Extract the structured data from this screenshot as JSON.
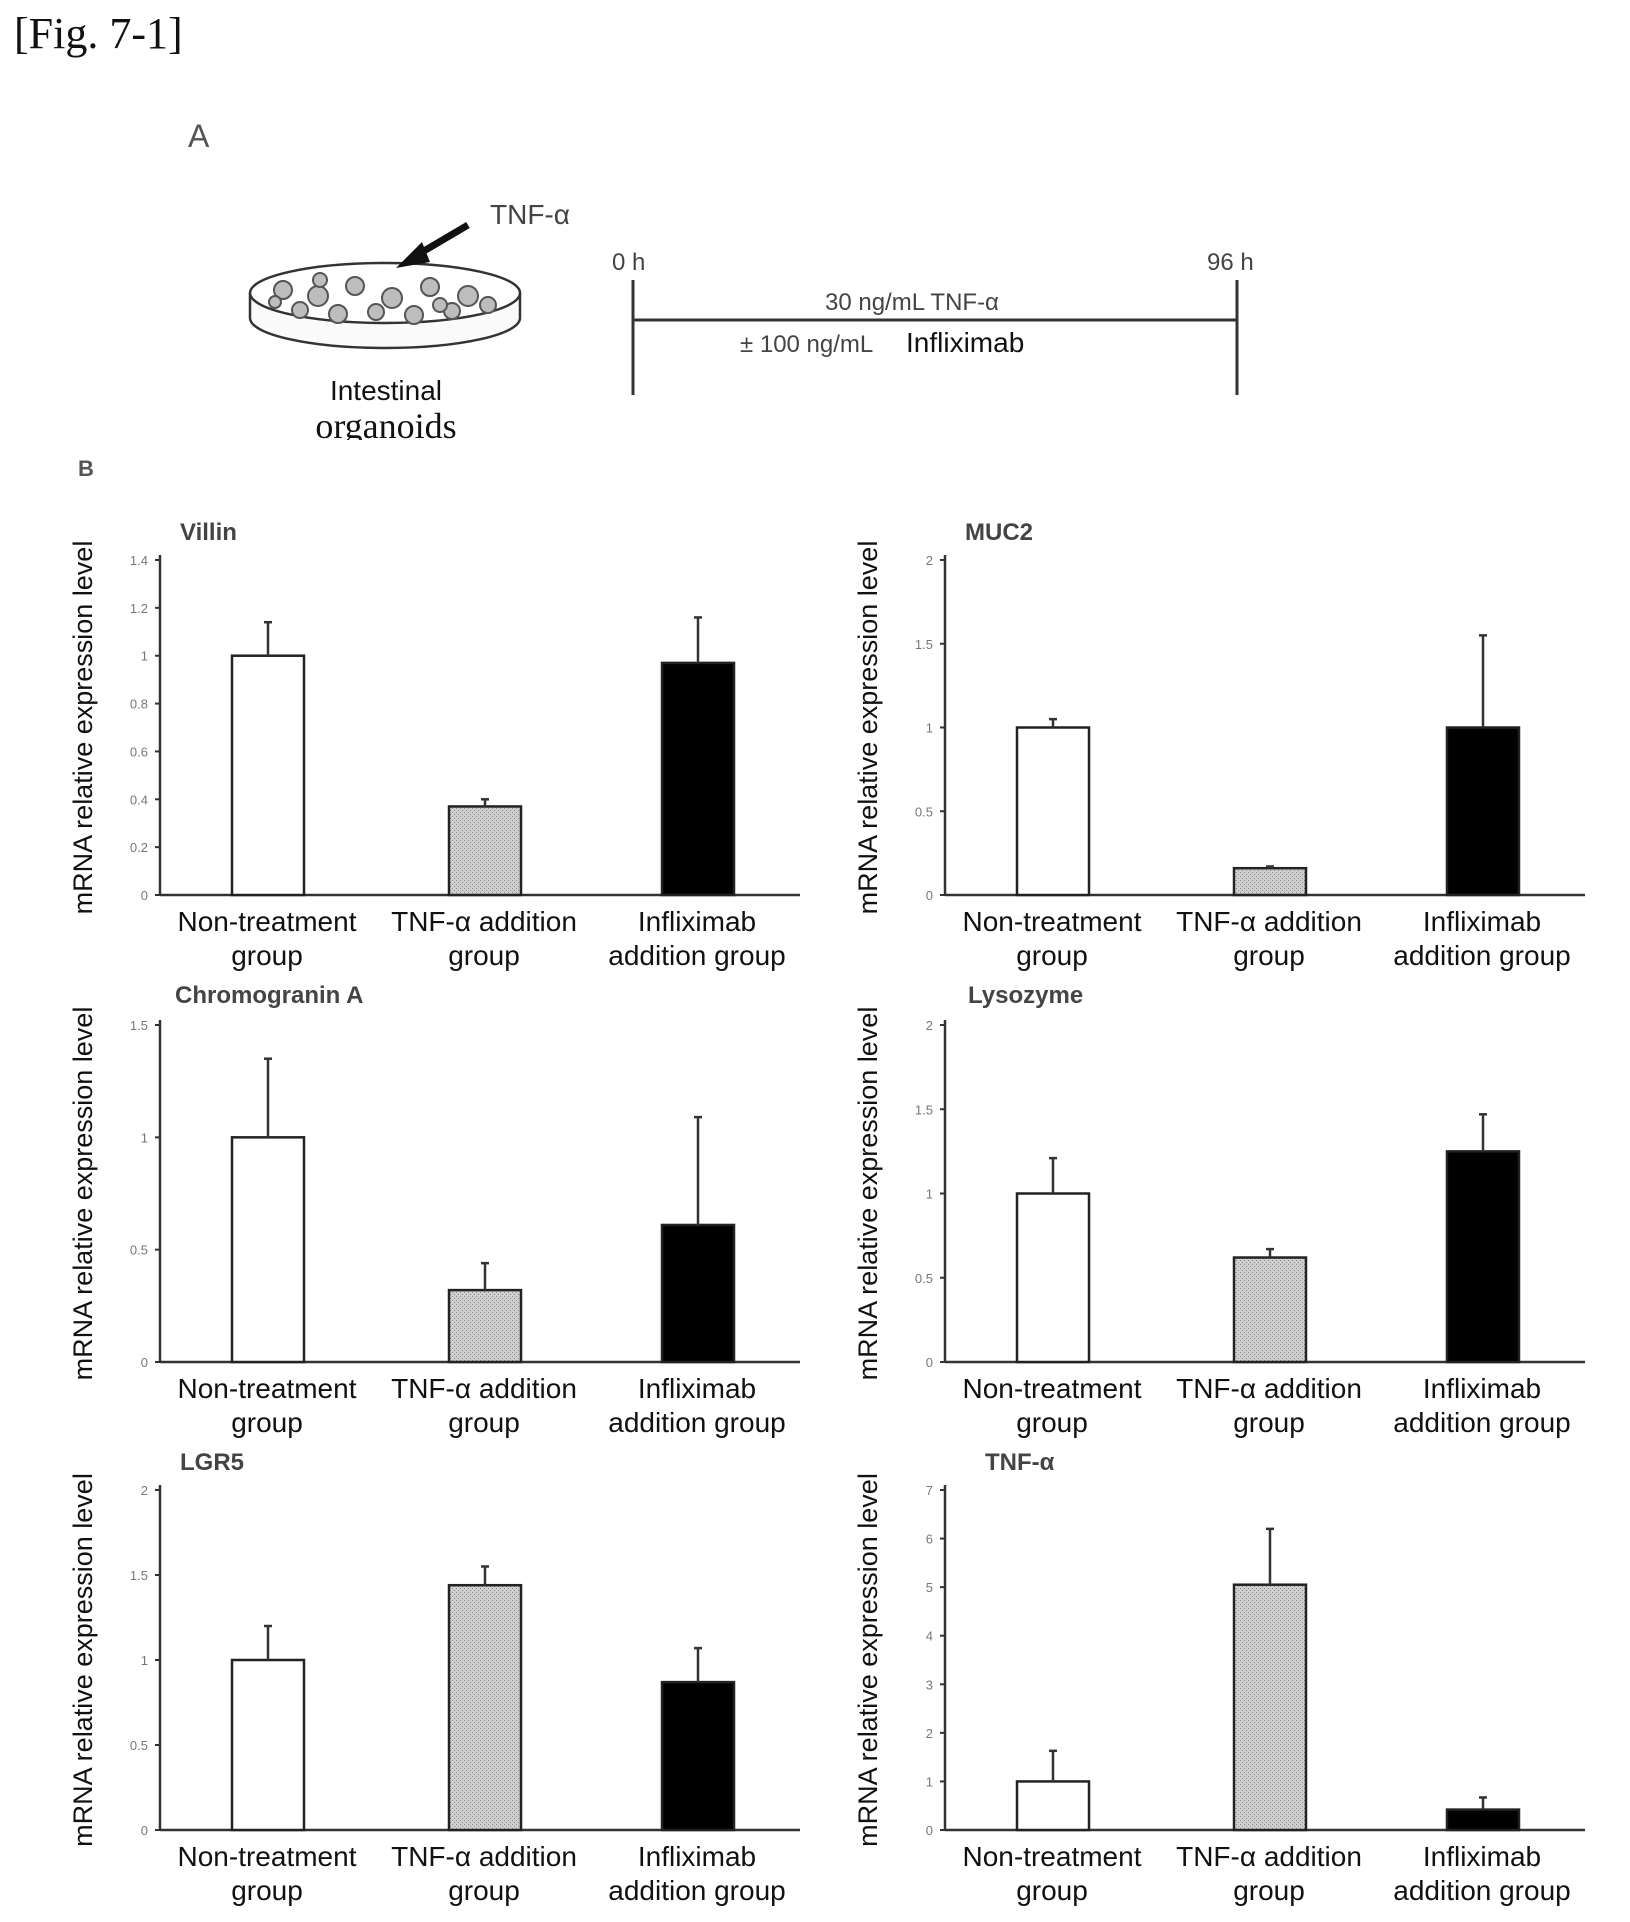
{
  "figure_label": "[Fig. 7-1]",
  "panel_a": {
    "letter": "A",
    "agent_label": "TNF-α",
    "dish_label_line1": "Intestinal",
    "dish_label_line2": "organoids",
    "timeline": {
      "start_label": "0 h",
      "end_label": "96 h",
      "line1": "30 ng/mL TNF-α",
      "line2_prefix": "± 100 ng/mL",
      "line2_drug": "Infliximab"
    }
  },
  "panel_b": {
    "letter": "B"
  },
  "colors": {
    "non_treatment": "#ffffff",
    "tnf_addition": "#c4c4c4",
    "infliximab_addition": "#000000"
  },
  "chart_data": [
    {
      "type": "bar",
      "title": "Villin",
      "ylabel": "mRNA relative expression level",
      "categories": [
        [
          "Non-treatment",
          "group"
        ],
        [
          "TNF-α addition",
          "group"
        ],
        [
          "Infliximab",
          "addition group"
        ]
      ],
      "values": [
        1.0,
        0.37,
        0.97
      ],
      "errors": [
        0.14,
        0.03,
        0.19
      ],
      "ylim": [
        0,
        1.4
      ],
      "yticks": [
        0,
        0.2,
        0.4,
        0.6,
        0.8,
        1,
        1.2,
        1.4
      ],
      "ytick_labels": [
        "0",
        "0.2",
        "0.4",
        "0.6",
        "0.8",
        "1",
        "1.2",
        "1.4"
      ]
    },
    {
      "type": "bar",
      "title": "MUC2",
      "ylabel": "mRNA relative expression level",
      "categories": [
        [
          "Non-treatment",
          "group"
        ],
        [
          "TNF-α addition",
          "group"
        ],
        [
          "Infliximab",
          "addition group"
        ]
      ],
      "values": [
        1.0,
        0.16,
        1.0
      ],
      "errors": [
        0.05,
        0.01,
        0.55
      ],
      "ylim": [
        0,
        2
      ],
      "yticks": [
        0,
        0.5,
        1,
        1.5,
        2
      ],
      "ytick_labels": [
        "0",
        "0.5",
        "1",
        "1.5",
        "2"
      ]
    },
    {
      "type": "bar",
      "title": "Chromogranin A",
      "ylabel": "mRNA relative expression level",
      "categories": [
        [
          "Non-treatment",
          "group"
        ],
        [
          "TNF-α addition",
          "group"
        ],
        [
          "Infliximab",
          "addition group"
        ]
      ],
      "values": [
        1.0,
        0.32,
        0.61
      ],
      "errors": [
        0.35,
        0.12,
        0.48
      ],
      "ylim": [
        0,
        1.5
      ],
      "yticks": [
        0,
        0.5,
        1,
        1.5
      ],
      "ytick_labels": [
        "0",
        "0.5",
        "1",
        "1.5"
      ]
    },
    {
      "type": "bar",
      "title": "Lysozyme",
      "ylabel": "mRNA relative expression level",
      "categories": [
        [
          "Non-treatment",
          "group"
        ],
        [
          "TNF-α addition",
          "group"
        ],
        [
          "Infliximab",
          "addition group"
        ]
      ],
      "values": [
        1.0,
        0.62,
        1.25
      ],
      "errors": [
        0.21,
        0.05,
        0.22
      ],
      "ylim": [
        0,
        2
      ],
      "yticks": [
        0,
        0.5,
        1,
        1.5,
        2
      ],
      "ytick_labels": [
        "0",
        "0.5",
        "1",
        "1.5",
        "2"
      ]
    },
    {
      "type": "bar",
      "title": "LGR5",
      "ylabel": "mRNA relative expression level",
      "categories": [
        [
          "Non-treatment",
          "group"
        ],
        [
          "TNF-α addition",
          "group"
        ],
        [
          "Infliximab",
          "addition group"
        ]
      ],
      "values": [
        1.0,
        1.44,
        0.87
      ],
      "errors": [
        0.2,
        0.11,
        0.2
      ],
      "ylim": [
        0,
        2
      ],
      "yticks": [
        0,
        0.5,
        1,
        1.5,
        2
      ],
      "ytick_labels": [
        "0",
        "0.5",
        "1",
        "1.5",
        "2"
      ]
    },
    {
      "type": "bar",
      "title": "TNF-α",
      "ylabel": "mRNA relative expression level",
      "categories": [
        [
          "Non-treatment",
          "group"
        ],
        [
          "TNF-α addition",
          "group"
        ],
        [
          "Infliximab",
          "addition group"
        ]
      ],
      "values": [
        1.0,
        5.05,
        0.42
      ],
      "errors": [
        0.63,
        1.15,
        0.25
      ],
      "ylim": [
        0,
        7
      ],
      "yticks": [
        0,
        1,
        2,
        3,
        4,
        5,
        6,
        7
      ],
      "ytick_labels": [
        "0",
        "1",
        "2",
        "3",
        "4",
        "5",
        "6",
        "7"
      ]
    }
  ]
}
